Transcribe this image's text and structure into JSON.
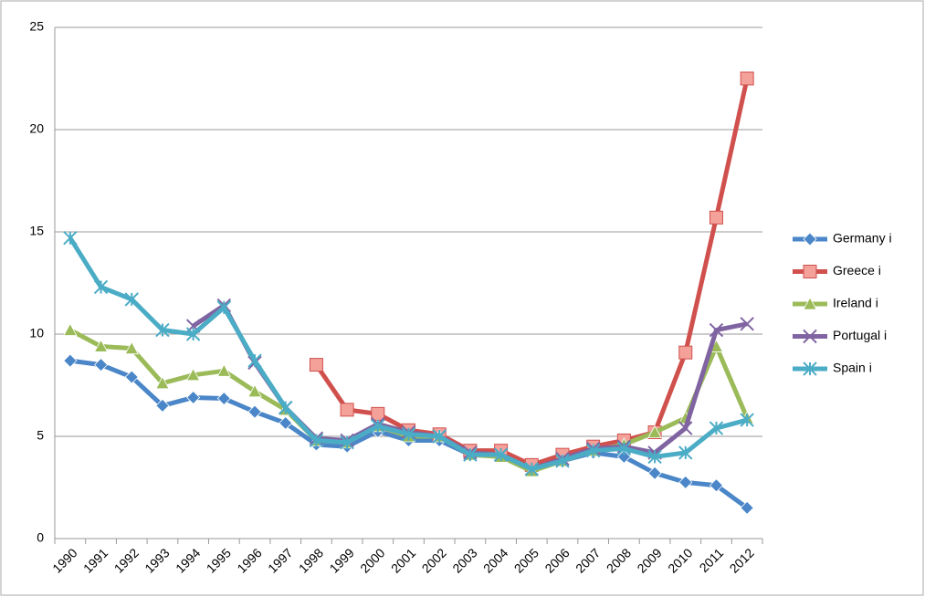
{
  "chart_data": {
    "type": "line",
    "categories": [
      "1990",
      "1991",
      "1992",
      "1993",
      "1994",
      "1995",
      "1996",
      "1997",
      "1998",
      "1999",
      "2000",
      "2001",
      "2002",
      "2003",
      "2004",
      "2005",
      "2006",
      "2007",
      "2008",
      "2009",
      "2010",
      "2011",
      "2012"
    ],
    "series": [
      {
        "name": "Germany i",
        "color": "#4a86c8",
        "marker": "diamond",
        "values": [
          8.7,
          8.5,
          7.9,
          6.5,
          6.9,
          6.85,
          6.2,
          5.65,
          4.6,
          4.5,
          5.25,
          4.8,
          4.8,
          4.1,
          4.05,
          3.35,
          3.8,
          4.2,
          4.0,
          3.2,
          2.75,
          2.6,
          1.5
        ]
      },
      {
        "name": "Greece i",
        "color": "#d0504d",
        "marker": "square",
        "values": [
          null,
          null,
          null,
          null,
          null,
          null,
          null,
          null,
          8.5,
          6.3,
          6.1,
          5.3,
          5.1,
          4.3,
          4.3,
          3.6,
          4.1,
          4.5,
          4.8,
          5.2,
          9.1,
          15.7,
          22.5
        ]
      },
      {
        "name": "Ireland i",
        "color": "#9bbb59",
        "marker": "triangle",
        "values": [
          10.2,
          9.4,
          9.3,
          7.6,
          8.0,
          8.2,
          7.2,
          6.3,
          4.8,
          4.7,
          5.5,
          5.0,
          5.0,
          4.1,
          4.0,
          3.3,
          3.8,
          4.3,
          4.6,
          5.2,
          5.9,
          9.4,
          5.9
        ]
      },
      {
        "name": "Portugal i",
        "color": "#8064a2",
        "marker": "x",
        "values": [
          null,
          null,
          null,
          null,
          10.4,
          11.4,
          8.6,
          6.4,
          4.9,
          4.8,
          5.6,
          5.2,
          5.0,
          4.2,
          4.1,
          3.4,
          3.9,
          4.4,
          4.5,
          4.2,
          5.4,
          10.2,
          10.5
        ]
      },
      {
        "name": "Spain i",
        "color": "#4bacc6",
        "marker": "star",
        "values": [
          14.7,
          12.3,
          11.7,
          10.2,
          10.0,
          11.3,
          8.7,
          6.4,
          4.8,
          4.7,
          5.5,
          5.1,
          5.0,
          4.1,
          4.1,
          3.4,
          3.8,
          4.3,
          4.4,
          4.0,
          4.2,
          5.4,
          5.8
        ]
      }
    ],
    "ylim": [
      0,
      25
    ],
    "yticks": [
      0,
      5,
      10,
      15,
      20,
      25
    ],
    "grid": true,
    "legend": "right"
  }
}
